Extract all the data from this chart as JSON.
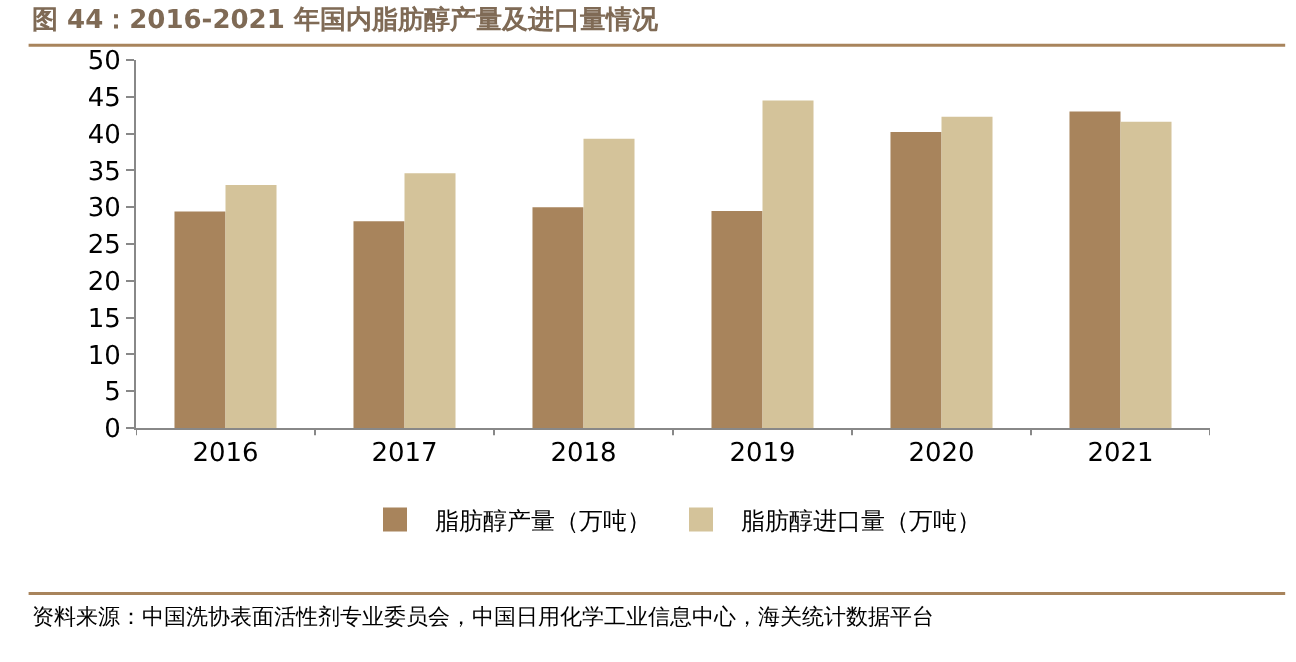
{
  "chart_data": {
    "type": "bar",
    "title": "图 44：2016-2021 年国内脂肪醇产量及进口量情况",
    "categories": [
      "2016",
      "2017",
      "2018",
      "2019",
      "2020",
      "2021"
    ],
    "series": [
      {
        "name": "脂肪醇产量（万吨）",
        "color": "#a8845c",
        "values": [
          29.4,
          28.1,
          30.0,
          29.5,
          40.2,
          43.0
        ]
      },
      {
        "name": "脂肪醇进口量（万吨）",
        "color": "#d4c39a",
        "values": [
          33.0,
          34.6,
          39.3,
          44.5,
          42.3,
          41.6
        ]
      }
    ],
    "ylim": [
      0,
      50
    ],
    "yticks": [
      0,
      5,
      10,
      15,
      20,
      25,
      30,
      35,
      40,
      45,
      50
    ],
    "legend": "bottom",
    "annotations": [
      "资料来源：中国洗协表面活性剂专业委员会，中国日用化学工业信息中心，海关统计数据平台"
    ]
  }
}
